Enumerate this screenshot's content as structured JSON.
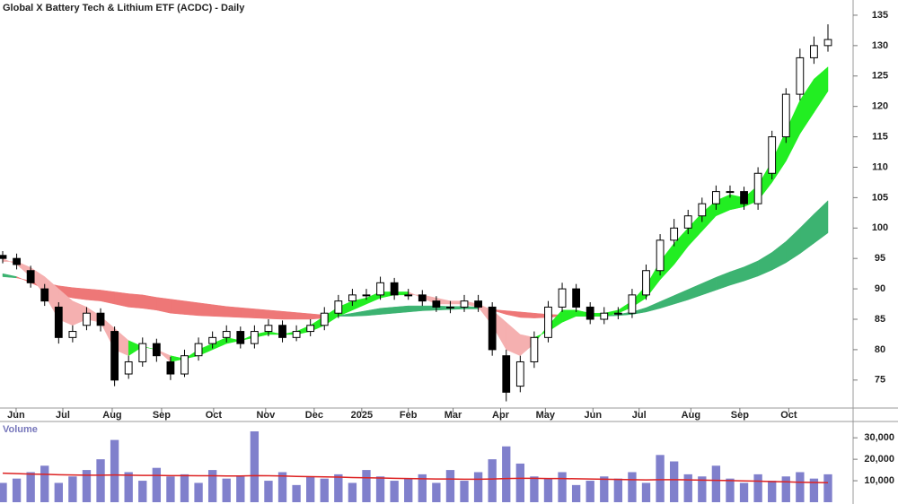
{
  "chart_data": [
    {
      "type": "candlestick",
      "title": "Global X Battery Tech & Lithium ETF (ACDC) - Daily",
      "open": [
        95.5,
        95,
        93,
        90,
        87,
        82,
        84,
        86,
        83,
        76,
        78,
        81,
        78,
        76,
        79,
        81,
        82,
        83,
        81,
        83,
        84,
        82,
        83,
        84,
        86,
        88,
        89,
        89,
        91,
        89,
        89,
        88,
        87,
        87,
        88,
        87,
        79,
        74,
        78,
        82,
        87,
        90,
        87,
        85,
        86,
        86,
        89,
        93,
        98,
        100,
        102,
        104,
        106,
        106,
        104,
        109,
        115,
        122,
        128,
        130
      ],
      "high": [
        96.2,
        95.8,
        93.8,
        90.8,
        87.8,
        84,
        87,
        86.8,
        83.8,
        79,
        82,
        81.8,
        78.8,
        80,
        82,
        83,
        84,
        83.8,
        84,
        85,
        84.8,
        84,
        85,
        87,
        89,
        90,
        90,
        92,
        91.8,
        90,
        89.8,
        88.8,
        88,
        89,
        89,
        87.8,
        80,
        79,
        83,
        88,
        91,
        90.8,
        87.8,
        87,
        87,
        90,
        94,
        99,
        101.5,
        103,
        105,
        107,
        107,
        106.8,
        110,
        116,
        123,
        129.5,
        131.5,
        133.5
      ],
      "low": [
        94.2,
        93.2,
        90.2,
        87.2,
        81,
        81.2,
        83.2,
        83,
        74,
        75.2,
        77.2,
        78,
        75,
        75.5,
        78.2,
        80.2,
        81.2,
        80.2,
        80.2,
        82.2,
        81.2,
        81.4,
        82.2,
        83.2,
        85.2,
        87.2,
        88.2,
        88.2,
        88.2,
        88.2,
        87.2,
        86.2,
        86,
        86.2,
        86.2,
        79,
        71.5,
        73,
        77,
        81.2,
        86.2,
        86.2,
        84.2,
        84.2,
        85,
        85.2,
        88.2,
        92.2,
        97,
        99,
        101,
        103,
        105,
        103,
        103,
        108,
        114,
        121,
        127,
        129
      ],
      "close": [
        95,
        94,
        91,
        88,
        82,
        83,
        86,
        84,
        75,
        78,
        81,
        79,
        76,
        79,
        81,
        82,
        83,
        81,
        83,
        84,
        82,
        83,
        84,
        86,
        88,
        89,
        89,
        91,
        89,
        89,
        88,
        87,
        87,
        88,
        87,
        80,
        73,
        78,
        82,
        87,
        90,
        87,
        85,
        86,
        86,
        89,
        93,
        98,
        100,
        102,
        104,
        106,
        106,
        104,
        109,
        115,
        122,
        128,
        130,
        131
      ],
      "ribbons": [
        {
          "fast": [
            92.5,
            92,
            91,
            90,
            89,
            88.5,
            88.2,
            88,
            87.5,
            87,
            86.8,
            86.5,
            86,
            85.8,
            85.6,
            85.5,
            85.4,
            85.3,
            85.2,
            85.1,
            85,
            85,
            85,
            85.2,
            85.6,
            86,
            86.4,
            86.8,
            87,
            87.2,
            87.2,
            87.2,
            87.1,
            87.1,
            87,
            86.5,
            85.8,
            85.3,
            85.2,
            85.3,
            85.5,
            85.5,
            85.5,
            85.6,
            85.8,
            86.2,
            86.9,
            87.9,
            88.9,
            89.9,
            90.9,
            91.9,
            92.8,
            93.6,
            94.6,
            96,
            97.8,
            100,
            102.3,
            104.5
          ],
          "slow": [
            92,
            91.8,
            91.3,
            91,
            90.5,
            90.2,
            90,
            89.8,
            89.5,
            89.2,
            89,
            88.6,
            88.3,
            88,
            87.7,
            87.4,
            87.1,
            86.9,
            86.7,
            86.5,
            86.3,
            86.1,
            85.9,
            85.7,
            85.5,
            85.5,
            85.6,
            85.8,
            86,
            86.2,
            86.4,
            86.5,
            86.6,
            86.7,
            86.7,
            86.6,
            86.4,
            86.2,
            86,
            85.8,
            85.7,
            85.6,
            85.5,
            85.5,
            85.6,
            85.8,
            86.2,
            86.8,
            87.5,
            88.2,
            89,
            89.8,
            90.6,
            91.3,
            92.1,
            93.1,
            94.3,
            95.8,
            97.5,
            99.2
          ],
          "up_color": "#3cb371",
          "down_color": "#ee7777"
        },
        {
          "fast": [
            95,
            94,
            92,
            89,
            85,
            84,
            85,
            84.5,
            80,
            79,
            80.5,
            80,
            78,
            78.5,
            80,
            81,
            82,
            81.5,
            82.5,
            83,
            82.5,
            83,
            84,
            85.5,
            87,
            88,
            88.5,
            89.5,
            89.5,
            89.5,
            88.5,
            87.5,
            87.5,
            87.5,
            87,
            84,
            80,
            79,
            81,
            84,
            86.5,
            86.5,
            86,
            86,
            86.5,
            88,
            90.5,
            94.5,
            97.5,
            100,
            102.5,
            104.5,
            105.5,
            105,
            107,
            111,
            116,
            121,
            124.5,
            126.5
          ],
          "slow": [
            94.5,
            94.5,
            93.5,
            92,
            90,
            88,
            87,
            85.5,
            83.5,
            81.5,
            80.5,
            80,
            79,
            78.5,
            79,
            80,
            81,
            81.5,
            82,
            82.5,
            82.5,
            82.5,
            83,
            84,
            85.5,
            86.5,
            87.5,
            88.5,
            89,
            89,
            89,
            88.5,
            88,
            88,
            87.5,
            86.5,
            84.5,
            82.5,
            82,
            83,
            84.5,
            85.5,
            85.5,
            85.5,
            86,
            87,
            88.5,
            91.5,
            94,
            97,
            99.5,
            102,
            103,
            103.5,
            104.5,
            107.5,
            111,
            115.5,
            119,
            122.5
          ],
          "up_color": "#22ee22",
          "down_color": "#f5b0b0"
        }
      ],
      "ylim": [
        70.4,
        137.5
      ],
      "yticks": [
        75,
        80,
        85,
        90,
        95,
        100,
        105,
        110,
        115,
        120,
        125,
        130,
        135
      ],
      "xticks": [
        {
          "value": 0.96,
          "label": "Jun"
        },
        {
          "value": 4.3,
          "label": "Jul"
        },
        {
          "value": 7.83,
          "label": "Aug"
        },
        {
          "value": 11.36,
          "label": "Sep"
        },
        {
          "value": 15.08,
          "label": "Oct"
        },
        {
          "value": 18.8,
          "label": "Nov"
        },
        {
          "value": 22.27,
          "label": "Dec"
        },
        {
          "value": 25.67,
          "label": "2025"
        },
        {
          "value": 29,
          "label": "Feb"
        },
        {
          "value": 32.2,
          "label": "Mar"
        },
        {
          "value": 35.6,
          "label": "Apr"
        },
        {
          "value": 38.8,
          "label": "May"
        },
        {
          "value": 42.2,
          "label": "Jun"
        },
        {
          "value": 45.5,
          "label": "Jul"
        },
        {
          "value": 49.2,
          "label": "Aug"
        },
        {
          "value": 52.7,
          "label": "Sep"
        },
        {
          "value": 56.2,
          "label": "Oct"
        }
      ]
    },
    {
      "type": "bar",
      "title": "Volume",
      "values": [
        9000,
        11000,
        14000,
        17000,
        9000,
        12000,
        15000,
        20000,
        29000,
        14000,
        10000,
        16000,
        12000,
        13000,
        9000,
        15000,
        11000,
        12000,
        33000,
        10000,
        14000,
        8000,
        12000,
        11000,
        13000,
        9000,
        15000,
        12000,
        10000,
        11000,
        13000,
        9000,
        15000,
        10000,
        14000,
        20000,
        26000,
        18000,
        12000,
        11000,
        14000,
        8000,
        10000,
        12000,
        11000,
        14000,
        9000,
        22000,
        19000,
        13000,
        12000,
        17000,
        11000,
        9000,
        13000,
        10000,
        12000,
        14000,
        11000,
        13000
      ],
      "color": "#8080cc",
      "average": {
        "color": "#dd2222",
        "values": [
          13500,
          13300,
          13100,
          13000,
          12800,
          12700,
          12600,
          12600,
          12700,
          12600,
          12500,
          12500,
          12400,
          12400,
          12300,
          12300,
          12200,
          12200,
          12400,
          12300,
          12200,
          12000,
          11900,
          11800,
          11700,
          11500,
          11400,
          11300,
          11100,
          11000,
          10900,
          10800,
          10800,
          10700,
          10700,
          10800,
          11000,
          11100,
          11100,
          11000,
          11000,
          10900,
          10800,
          10700,
          10600,
          10500,
          10400,
          10500,
          10500,
          10400,
          10300,
          10200,
          10100,
          9900,
          9800,
          9600,
          9500,
          9300,
          9200,
          9100
        ]
      },
      "ylim": [
        0,
        33000
      ],
      "yticks": [
        {
          "value": 10000,
          "label": "10,000"
        },
        {
          "value": 20000,
          "label": "20,000"
        },
        {
          "value": 30000,
          "label": "30,000"
        }
      ]
    }
  ]
}
